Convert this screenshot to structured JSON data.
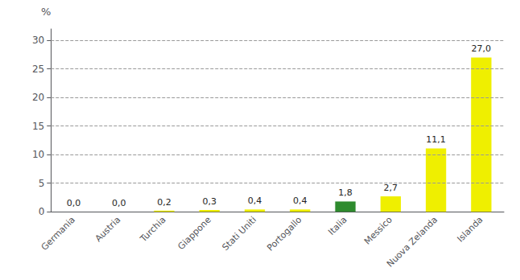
{
  "chart_data": {
    "type": "bar",
    "ylabel": "%",
    "categories": [
      "Germania",
      "Austria",
      "Turchia",
      "Giappone",
      "Stati Uniti",
      "Portogallo",
      "Italia",
      "Messico",
      "Nuova Zelanda",
      "Islanda"
    ],
    "values": [
      0.0,
      0.0,
      0.2,
      0.3,
      0.4,
      0.4,
      1.8,
      2.7,
      11.1,
      27.0
    ],
    "value_labels": [
      "0,0",
      "0,0",
      "0,2",
      "0,3",
      "0,4",
      "0,4",
      "1,8",
      "2,7",
      "11,1",
      "27,0"
    ],
    "colors": [
      "#EFEF00",
      "#EFEF00",
      "#EFEF00",
      "#EFEF00",
      "#EFEF00",
      "#EFEF00",
      "#2E8B2E",
      "#EFEF00",
      "#EFEF00",
      "#EFEF00"
    ],
    "ylim": [
      0,
      32
    ],
    "yticks": [
      0,
      5,
      10,
      15,
      20,
      25,
      30
    ],
    "grid": true,
    "data_labels": true
  }
}
